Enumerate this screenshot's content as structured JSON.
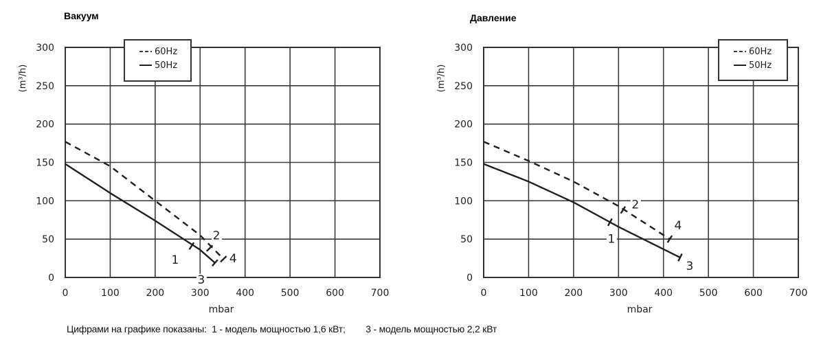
{
  "footnote": {
    "intro": "Цифрами на графике показаны:",
    "item1": "1 - модель мощностью 1,6 кВт;",
    "item3": "3 - модель мощностью 2,2 кВт"
  },
  "colors": {
    "line": "#231f20",
    "grid": "#3a3a3a",
    "text": "#231f20"
  },
  "chart_data": [
    {
      "type": "line",
      "title": "Вакуум",
      "xlabel": "mbar",
      "ylabel": "(m³/h)",
      "xlim": [
        0,
        700
      ],
      "ylim": [
        0,
        300
      ],
      "x_ticks": [
        "0",
        "100",
        "200",
        "300",
        "400",
        "500",
        "600",
        "700"
      ],
      "y_ticks": [
        "0",
        "50",
        "100",
        "150",
        "200",
        "250",
        "300"
      ],
      "grid": true,
      "legend_position": "top-inside",
      "legend": [
        "- - 60Hz",
        "— 50Hz"
      ],
      "series": [
        {
          "name": "60Hz",
          "style": "dashed",
          "x": [
            0,
            100,
            200,
            300,
            352
          ],
          "y": [
            177,
            145,
            100,
            55,
            24
          ]
        },
        {
          "name": "50Hz",
          "style": "solid",
          "x": [
            0,
            100,
            200,
            300,
            333
          ],
          "y": [
            148,
            110,
            74,
            36,
            19
          ]
        }
      ],
      "annotations": [
        {
          "label": "1",
          "series": "50Hz",
          "x": 281,
          "y": 41,
          "note": "model 1.6 kW limit"
        },
        {
          "label": "2",
          "series": "60Hz",
          "x": 321,
          "y": 38
        },
        {
          "label": "3",
          "series": "50Hz",
          "x": 333,
          "y": 19,
          "note": "model 2.2 kW limit"
        },
        {
          "label": "4",
          "series": "60Hz",
          "x": 352,
          "y": 24
        }
      ]
    },
    {
      "type": "line",
      "title": "Давление",
      "xlabel": "mbar",
      "ylabel": "(m³/h)",
      "xlim": [
        0,
        700
      ],
      "ylim": [
        0,
        300
      ],
      "x_ticks": [
        "0",
        "100",
        "200",
        "300",
        "400",
        "500",
        "600",
        "700"
      ],
      "y_ticks": [
        "0",
        "50",
        "100",
        "150",
        "200",
        "250",
        "300"
      ],
      "grid": true,
      "legend_position": "top-right-inside",
      "legend": [
        "- - 60Hz",
        "— 50Hz"
      ],
      "series": [
        {
          "name": "60Hz",
          "style": "dashed",
          "x": [
            0,
            100,
            200,
            300,
            414
          ],
          "y": [
            177,
            152,
            125,
            93,
            50
          ]
        },
        {
          "name": "50Hz",
          "style": "solid",
          "x": [
            0,
            100,
            200,
            300,
            437
          ],
          "y": [
            148,
            125,
            98,
            66,
            26
          ]
        }
      ],
      "annotations": [
        {
          "label": "1",
          "series": "50Hz",
          "x": 281,
          "y": 72,
          "note": "model 1.6 kW limit"
        },
        {
          "label": "2",
          "series": "60Hz",
          "x": 310,
          "y": 88
        },
        {
          "label": "3",
          "series": "50Hz",
          "x": 437,
          "y": 26,
          "note": "model 2.2 kW limit"
        },
        {
          "label": "4",
          "series": "60Hz",
          "x": 414,
          "y": 50
        }
      ]
    }
  ]
}
